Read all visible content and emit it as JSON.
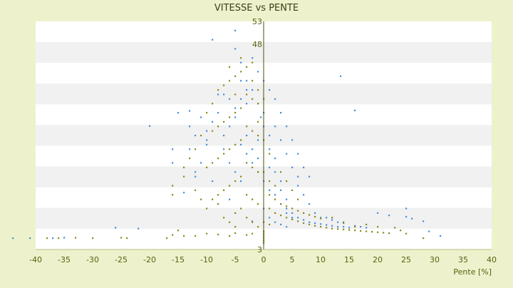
{
  "chart_data": {
    "type": "scatter",
    "title": "VITESSE vs PENTE",
    "xlabel": "Pente [%]",
    "ylabel": "",
    "xlim": [
      -40,
      40
    ],
    "ylim": [
      3,
      53
    ],
    "x_ticks": [
      "-40",
      "-35",
      "-30",
      "-25",
      "-20",
      "-15",
      "-10",
      "-5",
      "0",
      "5",
      "10",
      "15",
      "20",
      "25",
      "30",
      "35",
      "40"
    ],
    "y_ticks": [
      "3",
      "48",
      "53"
    ],
    "grid": "horizontal alternating bands",
    "legend": "none",
    "series": [
      {
        "color": "#4a8fd9",
        "points": [
          [
            -44,
            5.5
          ],
          [
            -41,
            5.5
          ],
          [
            -37,
            5.5
          ],
          [
            -35,
            5.6
          ],
          [
            -26,
            7.8
          ],
          [
            -22,
            7.6
          ],
          [
            -20,
            30.1
          ],
          [
            -16,
            25
          ],
          [
            -16,
            22
          ],
          [
            -15,
            33
          ],
          [
            -13,
            33.4
          ],
          [
            -12,
            20
          ],
          [
            -14,
            15.5
          ],
          [
            -9,
            49
          ],
          [
            -5,
            51
          ],
          [
            -5,
            47
          ],
          [
            -10,
            27
          ],
          [
            -12,
            19
          ],
          [
            -13,
            30
          ],
          [
            -7,
            37
          ],
          [
            -6,
            14
          ],
          [
            -4,
            40
          ],
          [
            -3,
            35
          ],
          [
            -2,
            9.2
          ],
          [
            -1,
            23
          ],
          [
            -0.5,
            32
          ],
          [
            13.5,
            41
          ],
          [
            16,
            33.5
          ],
          [
            20,
            11
          ],
          [
            22,
            10.5
          ],
          [
            25,
            10.2
          ],
          [
            25,
            12
          ],
          [
            26,
            9.8
          ],
          [
            28,
            9.2
          ],
          [
            31,
            6
          ],
          [
            29,
            7
          ]
        ],
        "cluster_points": [
          [
            -3,
            40
          ],
          [
            -3,
            38
          ],
          [
            -4,
            36
          ],
          [
            -5,
            34
          ],
          [
            -5,
            32
          ],
          [
            -6,
            30
          ],
          [
            -7,
            28
          ],
          [
            -7,
            25
          ],
          [
            -6,
            22
          ],
          [
            -5,
            20
          ],
          [
            -4,
            18
          ],
          [
            -8,
            33
          ],
          [
            -9,
            31
          ],
          [
            -10,
            29
          ],
          [
            -10,
            26
          ],
          [
            0,
            33
          ],
          [
            0,
            30
          ],
          [
            1,
            28
          ],
          [
            1,
            25
          ],
          [
            2,
            23
          ],
          [
            2,
            20
          ],
          [
            3,
            18
          ],
          [
            3,
            16
          ],
          [
            4,
            14
          ],
          [
            4,
            12
          ],
          [
            5,
            11
          ],
          [
            6,
            10
          ],
          [
            7,
            9.5
          ],
          [
            8,
            9
          ],
          [
            9,
            8.8
          ],
          [
            10,
            8.6
          ],
          [
            11,
            8.4
          ],
          [
            12,
            8.2
          ],
          [
            13,
            8
          ],
          [
            14,
            8
          ],
          [
            15,
            7.8
          ],
          [
            -1,
            27
          ],
          [
            -2,
            25
          ],
          [
            -1,
            20
          ],
          [
            0,
            18
          ],
          [
            1,
            16
          ],
          [
            2,
            15
          ],
          [
            3,
            13
          ],
          [
            4,
            11
          ],
          [
            5,
            10
          ],
          [
            -2,
            38
          ],
          [
            -1,
            35
          ],
          [
            2,
            36
          ],
          [
            3,
            33
          ],
          [
            4,
            30
          ],
          [
            5,
            27
          ],
          [
            -3,
            28
          ],
          [
            -4,
            26
          ],
          [
            -2,
            22
          ],
          [
            1,
            21
          ],
          [
            6,
            17
          ],
          [
            7,
            15
          ],
          [
            8,
            13
          ],
          [
            9,
            11
          ],
          [
            10,
            10
          ],
          [
            -6,
            36
          ],
          [
            -8,
            37
          ],
          [
            -11,
            32
          ],
          [
            -12,
            28
          ],
          [
            -13,
            25
          ],
          [
            -11,
            22
          ],
          [
            -9,
            18
          ],
          [
            6,
            24
          ],
          [
            7,
            21
          ],
          [
            8,
            19
          ],
          [
            -1,
            42
          ],
          [
            0,
            40
          ],
          [
            1,
            38
          ],
          [
            2,
            30
          ],
          [
            3,
            27
          ],
          [
            4,
            24
          ],
          [
            5,
            21
          ],
          [
            6,
            19
          ],
          [
            11,
            10
          ],
          [
            12,
            9.5
          ],
          [
            13,
            9
          ],
          [
            14,
            8.8
          ],
          [
            16,
            8.2
          ],
          [
            17,
            8
          ],
          [
            18,
            7.8
          ],
          [
            -4,
            44
          ],
          [
            -2,
            45
          ],
          [
            -3,
            24
          ],
          [
            0,
            12
          ],
          [
            1,
            10
          ],
          [
            2,
            9
          ],
          [
            3,
            8.5
          ],
          [
            4,
            8
          ]
        ]
      },
      {
        "color": "#8a8c1a",
        "points": [
          [
            -38,
            5.5
          ],
          [
            -36,
            5.5
          ],
          [
            -33,
            5.6
          ],
          [
            -30,
            5.5
          ],
          [
            -25,
            5.6
          ],
          [
            -24,
            5.5
          ],
          [
            -17,
            5.5
          ],
          [
            -16,
            6.2
          ],
          [
            -15,
            7.2
          ],
          [
            -14,
            6
          ],
          [
            -12,
            6
          ],
          [
            -10,
            6.5
          ],
          [
            -8,
            6.3
          ],
          [
            -6,
            6
          ],
          [
            -5,
            6.6
          ],
          [
            -3,
            6.2
          ],
          [
            -2,
            6.5
          ],
          [
            -16,
            17
          ],
          [
            -16,
            15
          ],
          [
            -14,
            19
          ],
          [
            -12,
            16
          ],
          [
            -11,
            14
          ],
          [
            -10,
            12
          ],
          [
            -8,
            13
          ],
          [
            -7,
            10
          ],
          [
            -6,
            9
          ],
          [
            -5,
            8
          ],
          [
            0,
            4.5
          ],
          [
            0,
            5
          ],
          [
            0,
            5.5
          ],
          [
            0,
            6
          ],
          [
            0,
            6.5
          ],
          [
            0,
            7
          ]
        ],
        "cluster_points": [
          [
            -2,
            44
          ],
          [
            -3,
            43
          ],
          [
            -4,
            42
          ],
          [
            -5,
            41
          ],
          [
            -6,
            40
          ],
          [
            -7,
            39
          ],
          [
            -8,
            38
          ],
          [
            -3,
            37
          ],
          [
            -2,
            36
          ],
          [
            -1,
            35
          ],
          [
            -4,
            34
          ],
          [
            -5,
            33
          ],
          [
            -6,
            32
          ],
          [
            -7,
            31
          ],
          [
            -8,
            30
          ],
          [
            -9,
            29
          ],
          [
            -3,
            30
          ],
          [
            -2,
            29
          ],
          [
            -1,
            28
          ],
          [
            -4,
            27
          ],
          [
            -5,
            26
          ],
          [
            -6,
            25
          ],
          [
            -7,
            24
          ],
          [
            -8,
            23
          ],
          [
            -9,
            22
          ],
          [
            -10,
            21
          ],
          [
            -3,
            22
          ],
          [
            -2,
            21
          ],
          [
            -1,
            20
          ],
          [
            -4,
            19
          ],
          [
            -5,
            18
          ],
          [
            -6,
            17
          ],
          [
            -7,
            16
          ],
          [
            -8,
            15
          ],
          [
            -9,
            14
          ],
          [
            -3,
            15
          ],
          [
            -2,
            14
          ],
          [
            -1,
            13
          ],
          [
            -4,
            12
          ],
          [
            -5,
            11
          ],
          [
            1,
            12
          ],
          [
            2,
            11
          ],
          [
            3,
            10.5
          ],
          [
            4,
            10
          ],
          [
            5,
            9.6
          ],
          [
            6,
            9.2
          ],
          [
            7,
            8.8
          ],
          [
            8,
            8.5
          ],
          [
            9,
            8.2
          ],
          [
            10,
            8
          ],
          [
            11,
            7.8
          ],
          [
            12,
            7.6
          ],
          [
            13,
            7.5
          ],
          [
            14,
            7.4
          ],
          [
            15,
            7.3
          ],
          [
            16,
            7.2
          ],
          [
            17,
            7.1
          ],
          [
            18,
            7
          ],
          [
            19,
            6.9
          ],
          [
            20,
            6.8
          ],
          [
            21,
            6.7
          ],
          [
            22,
            6.6
          ],
          [
            1,
            15
          ],
          [
            2,
            14
          ],
          [
            3,
            13
          ],
          [
            4,
            12.5
          ],
          [
            5,
            12
          ],
          [
            6,
            11.5
          ],
          [
            7,
            11
          ],
          [
            8,
            10.6
          ],
          [
            9,
            10.2
          ],
          [
            10,
            9.8
          ],
          [
            -2,
            40
          ],
          [
            -1,
            38
          ],
          [
            0,
            36
          ],
          [
            -1,
            31
          ],
          [
            0,
            27
          ],
          [
            1,
            24
          ],
          [
            0,
            20
          ],
          [
            1,
            18
          ],
          [
            2,
            17
          ],
          [
            -3,
            10
          ],
          [
            -2,
            9
          ],
          [
            -1,
            8
          ],
          [
            0,
            9
          ],
          [
            1,
            8.5
          ],
          [
            -6,
            43
          ],
          [
            -4,
            45
          ],
          [
            -5,
            37
          ],
          [
            -9,
            35
          ],
          [
            -10,
            33
          ],
          [
            -11,
            28
          ],
          [
            -12,
            25
          ],
          [
            -13,
            23
          ],
          [
            -14,
            21
          ],
          [
            3,
            20
          ],
          [
            4,
            18
          ],
          [
            5,
            16
          ],
          [
            6,
            14
          ],
          [
            12,
            10
          ],
          [
            14,
            9
          ],
          [
            16,
            8
          ],
          [
            18,
            8.5
          ],
          [
            20,
            8
          ],
          [
            23,
            7.8
          ],
          [
            24,
            7.2
          ],
          [
            25,
            6.5
          ],
          [
            28,
            5.5
          ]
        ]
      }
    ]
  }
}
